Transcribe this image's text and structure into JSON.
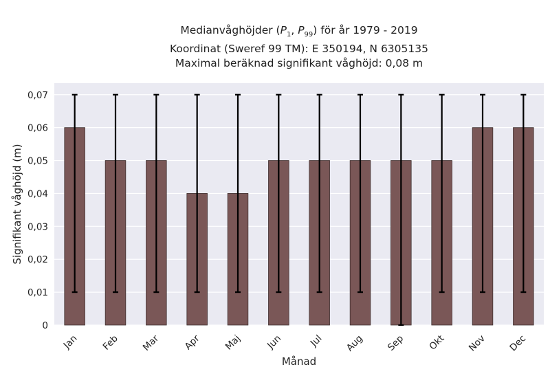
{
  "title": {
    "line1_prefix": "Medianvåghöjder (",
    "p_low": "P",
    "p_low_sub": "1",
    "separator": ", ",
    "p_high": "P",
    "p_high_sub": "99",
    "line1_suffix": ") för år 1979 - 2019",
    "line2": "Koordinat (Sweref 99 TM): E 350194, N 6305135",
    "line3": "Maximal beräknad signifikant våghöjd: 0,08 m"
  },
  "chart_data": {
    "type": "bar",
    "title": "Medianvåghöjder (P1, P99) för år 1979 - 2019",
    "xlabel": "Månad",
    "ylabel": "Signifikant våghöjd (m)",
    "categories": [
      "Jan",
      "Feb",
      "Mar",
      "Apr",
      "Maj",
      "Jun",
      "Jul",
      "Aug",
      "Sep",
      "Okt",
      "Nov",
      "Dec"
    ],
    "values": [
      0.06,
      0.05,
      0.05,
      0.04,
      0.04,
      0.05,
      0.05,
      0.05,
      0.05,
      0.05,
      0.06,
      0.06
    ],
    "error_low": [
      0.01,
      0.01,
      0.01,
      0.01,
      0.01,
      0.01,
      0.01,
      0.01,
      0.0,
      0.01,
      0.01,
      0.01
    ],
    "error_high": [
      0.07,
      0.07,
      0.07,
      0.07,
      0.07,
      0.07,
      0.07,
      0.07,
      0.07,
      0.07,
      0.07,
      0.07
    ],
    "yticks": [
      0,
      0.01,
      0.02,
      0.03,
      0.04,
      0.05,
      0.06,
      0.07
    ],
    "ytick_labels": [
      "0",
      "0,01",
      "0,02",
      "0,03",
      "0,04",
      "0,05",
      "0,06",
      "0,07"
    ],
    "ylim": [
      0,
      0.0735
    ],
    "grid": true,
    "bar_color": "#7a5757",
    "errorbar_color": "#000000",
    "background_color": "#eaeaf2"
  }
}
